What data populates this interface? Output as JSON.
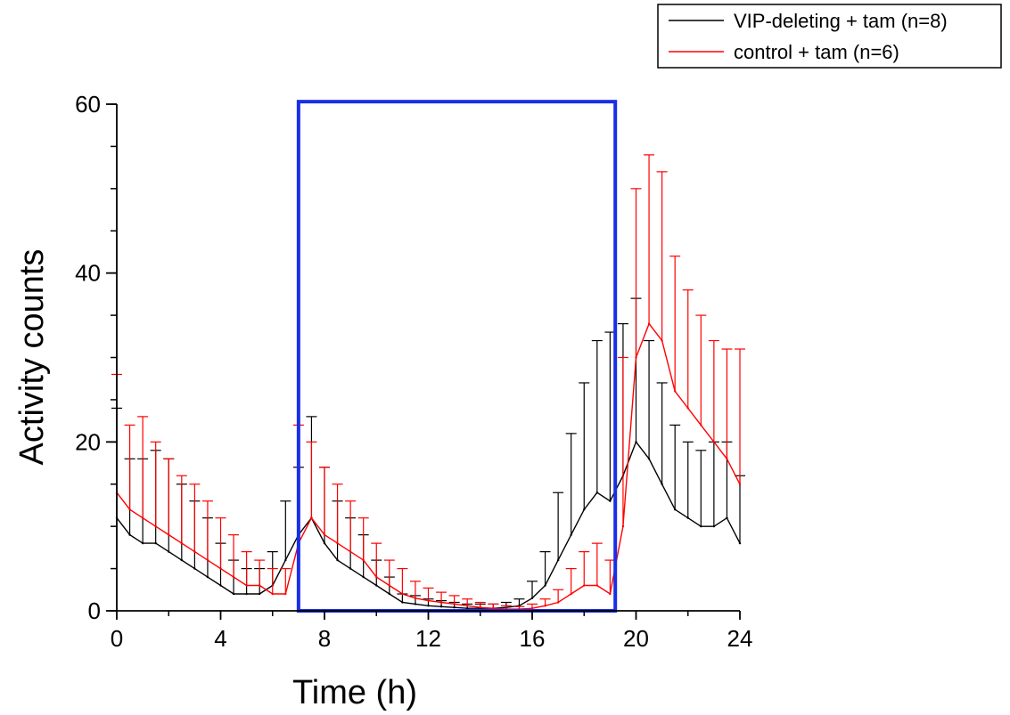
{
  "chart_data": {
    "type": "line",
    "title": "",
    "xlabel": "Time (h)",
    "ylabel": "Activity counts",
    "xlim": [
      0,
      24
    ],
    "ylim": [
      0,
      60
    ],
    "xticks": [
      {
        "value": 0,
        "label": "0"
      },
      {
        "value": 4,
        "label": "4"
      },
      {
        "value": 8,
        "label": "8"
      },
      {
        "value": 12,
        "label": "12"
      },
      {
        "value": 16,
        "label": "16"
      },
      {
        "value": 20,
        "label": "20"
      },
      {
        "value": 24,
        "label": "24"
      }
    ],
    "yticks": [
      {
        "value": 0,
        "label": "0"
      },
      {
        "value": 20,
        "label": "20"
      },
      {
        "value": 40,
        "label": "40"
      },
      {
        "value": 60,
        "label": "60"
      }
    ],
    "y_minor_step": 5,
    "grid": false,
    "legend_position": "top-right",
    "error_bars": "upper",
    "highlight_box": {
      "x_start": 7,
      "x_end": 19.2,
      "y_bottom": 0,
      "y_top": 60.3,
      "color": "#1a2ee6"
    },
    "series": [
      {
        "name": "VIP-deleting + tam (n=8)",
        "color": "#000000",
        "x": [
          0,
          0.5,
          1,
          1.5,
          2,
          2.5,
          3,
          3.5,
          4,
          4.5,
          5,
          5.5,
          6,
          6.5,
          7,
          7.5,
          8,
          8.5,
          9,
          9.5,
          10,
          10.5,
          11,
          11.5,
          12,
          12.5,
          13,
          13.5,
          14,
          14.5,
          15,
          15.5,
          16,
          16.5,
          17,
          17.5,
          18,
          18.5,
          19,
          19.5,
          20,
          20.5,
          21,
          21.5,
          22,
          22.5,
          23,
          23.5,
          24
        ],
        "values": [
          11,
          9,
          8,
          8,
          7,
          6,
          5,
          4,
          3,
          2,
          2,
          2,
          3,
          6,
          9,
          11,
          8,
          6,
          5,
          4,
          3,
          2,
          1,
          0.8,
          0.6,
          0.5,
          0.4,
          0.3,
          0.3,
          0.3,
          0.4,
          0.6,
          1.5,
          3,
          6,
          9,
          12,
          14,
          13,
          16,
          20,
          18,
          15,
          12,
          11,
          10,
          10,
          11,
          8
        ],
        "errors": [
          13,
          9,
          10,
          11,
          11,
          9,
          8,
          7,
          5,
          4,
          3,
          3,
          4,
          7,
          8,
          12,
          9,
          7,
          6,
          5,
          3,
          2,
          1,
          1,
          0.8,
          0.7,
          0.6,
          0.5,
          0.5,
          0.5,
          0.6,
          0.8,
          2,
          4,
          8,
          12,
          15,
          18,
          20,
          18,
          17,
          14,
          12,
          10,
          9,
          9,
          10,
          9,
          8
        ]
      },
      {
        "name": "control + tam (n=6)",
        "color": "#ff0000",
        "x": [
          0,
          0.5,
          1,
          1.5,
          2,
          2.5,
          3,
          3.5,
          4,
          4.5,
          5,
          5.5,
          6,
          6.5,
          7,
          7.5,
          8,
          8.5,
          9,
          9.5,
          10,
          10.5,
          11,
          11.5,
          12,
          12.5,
          13,
          13.5,
          14,
          14.5,
          15,
          15.5,
          16,
          16.5,
          17,
          17.5,
          18,
          18.5,
          19,
          19.5,
          20,
          20.5,
          21,
          21.5,
          22,
          22.5,
          23,
          23.5,
          24
        ],
        "values": [
          14,
          12,
          11,
          10,
          9,
          8,
          7,
          6,
          5,
          4,
          3,
          3,
          2,
          2,
          8,
          11,
          9,
          8,
          7,
          6,
          4,
          3,
          2,
          1.5,
          1.2,
          1,
          0.8,
          0.6,
          0.4,
          0.3,
          0.2,
          0.2,
          0.3,
          0.6,
          1,
          2,
          3,
          3,
          2,
          10,
          30,
          34,
          32,
          26,
          24,
          22,
          20,
          18,
          15
        ],
        "errors": [
          14,
          10,
          12,
          10,
          9,
          8,
          8,
          7,
          6,
          5,
          4,
          3,
          3,
          3,
          14,
          9,
          8,
          7,
          6,
          5,
          4,
          3,
          3,
          2,
          1.5,
          1.2,
          1,
          0.8,
          0.6,
          0.5,
          0.4,
          0.3,
          0.5,
          0.8,
          1.5,
          3,
          4,
          5,
          4,
          20,
          20,
          20,
          20,
          16,
          14,
          13,
          12,
          13,
          16
        ]
      }
    ]
  }
}
